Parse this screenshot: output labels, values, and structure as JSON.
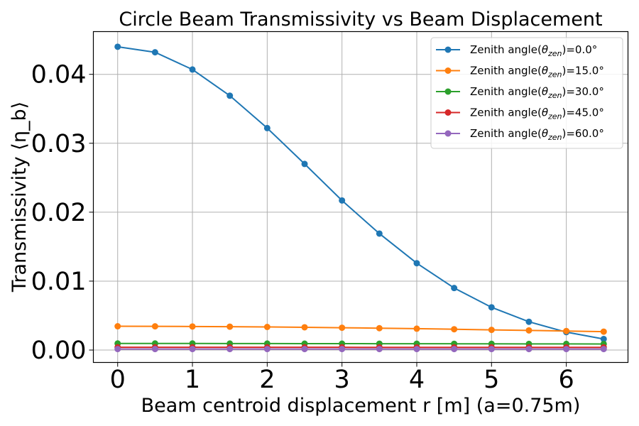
{
  "chart_data": {
    "type": "line",
    "title": "Circle Beam Transmissivity vs Beam Displacement",
    "xlabel": "Beam centroid displacement r [m] (a=0.75m)",
    "ylabel": "Transmissivity ⟨η_b⟩",
    "xlim": [
      -0.325,
      6.825
    ],
    "ylim": [
      -0.0018,
      0.0462
    ],
    "xticks": [
      0,
      1,
      2,
      3,
      4,
      5,
      6
    ],
    "xtick_labels": [
      "0",
      "1",
      "2",
      "3",
      "4",
      "5",
      "6"
    ],
    "yticks": [
      0.0,
      0.01,
      0.02,
      0.03,
      0.04
    ],
    "ytick_labels": [
      "0.00",
      "0.01",
      "0.02",
      "0.03",
      "0.04"
    ],
    "grid": true,
    "legend_position": "top-right",
    "x": [
      0,
      0.5,
      1,
      1.5,
      2,
      2.5,
      3,
      3.5,
      4,
      4.5,
      5,
      5.5,
      6,
      6.5
    ],
    "series": [
      {
        "name_prefix": "Zenith angle(",
        "name_symbol": "θ",
        "name_sub": "zen",
        "name_suffix": ")=0.0°",
        "color": "#1f77b4",
        "values": [
          0.044,
          0.0432,
          0.0407,
          0.0369,
          0.0322,
          0.027,
          0.0217,
          0.0169,
          0.0126,
          0.009,
          0.0062,
          0.0041,
          0.0026,
          0.0016
        ]
      },
      {
        "name_prefix": "Zenith angle(",
        "name_symbol": "θ",
        "name_sub": "zen",
        "name_suffix": ")=15.0°",
        "color": "#ff7f0e",
        "values": [
          0.00345,
          0.00344,
          0.00342,
          0.00339,
          0.00335,
          0.0033,
          0.00324,
          0.00317,
          0.0031,
          0.00302,
          0.00293,
          0.00285,
          0.00276,
          0.00267
        ]
      },
      {
        "name_prefix": "Zenith angle(",
        "name_symbol": "θ",
        "name_sub": "zen",
        "name_suffix": ")=30.0°",
        "color": "#2ca02c",
        "values": [
          0.00095,
          0.00095,
          0.00095,
          0.00094,
          0.00094,
          0.00093,
          0.00093,
          0.00092,
          0.00092,
          0.00091,
          0.0009,
          0.00089,
          0.00089,
          0.00088
        ]
      },
      {
        "name_prefix": "Zenith angle(",
        "name_symbol": "θ",
        "name_sub": "zen",
        "name_suffix": ")=45.0°",
        "color": "#d62728",
        "values": [
          0.0004,
          0.0004,
          0.0004,
          0.0004,
          0.0004,
          0.0004,
          0.0004,
          0.00039,
          0.00039,
          0.00039,
          0.00039,
          0.00039,
          0.00039,
          0.00039
        ]
      },
      {
        "name_prefix": "Zenith angle(",
        "name_symbol": "θ",
        "name_sub": "zen",
        "name_suffix": ")=60.0°",
        "color": "#9467bd",
        "values": [
          0.00015,
          0.00015,
          0.00015,
          0.00015,
          0.00015,
          0.00015,
          0.00015,
          0.00015,
          0.00015,
          0.00015,
          0.00015,
          0.00015,
          0.00015,
          0.00015
        ]
      }
    ]
  }
}
